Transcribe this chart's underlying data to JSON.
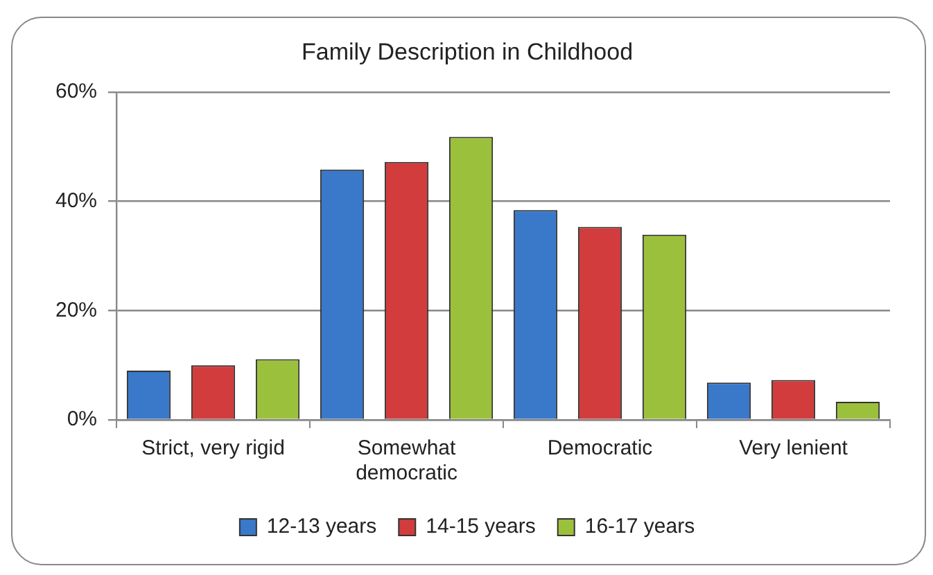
{
  "chart_data": {
    "type": "bar",
    "title": "Family Description in Childhood",
    "categories": [
      "Strict, very rigid",
      "Somewhat democratic",
      "Democratic",
      "Very lenient"
    ],
    "series": [
      {
        "name": "12-13 years",
        "color": "#3a78c9",
        "values": [
          9,
          45.8,
          38.4,
          6.8
        ]
      },
      {
        "name": "14-15 years",
        "color": "#d23c3c",
        "values": [
          10,
          47.2,
          35.3,
          7.3
        ]
      },
      {
        "name": "16-17 years",
        "color": "#9bc13c",
        "values": [
          11.1,
          51.8,
          33.9,
          3.3
        ]
      }
    ],
    "ylim": [
      0,
      60
    ],
    "yticks": [
      {
        "value": 0,
        "label": "0%"
      },
      {
        "value": 20,
        "label": "20%"
      },
      {
        "value": 40,
        "label": "40%"
      },
      {
        "value": 60,
        "label": "60%"
      }
    ],
    "grid": "y",
    "legend": "bottom"
  }
}
